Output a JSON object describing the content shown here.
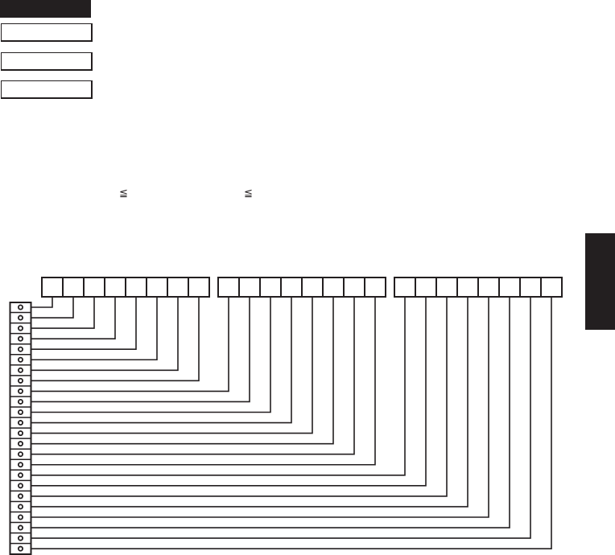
{
  "symbols": {
    "leq_1": "≦",
    "leq_2": "≦"
  },
  "colors": {
    "ink": "#231f20",
    "background": "#ffffff"
  }
}
